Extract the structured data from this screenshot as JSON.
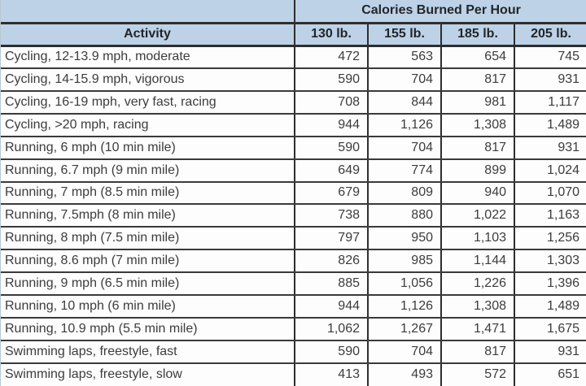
{
  "colors": {
    "header_bg": "#bdd2e6",
    "grid_dark": "#2e2e2e",
    "row_separator": "#3a3a3a",
    "body_text": "#3c3c3c",
    "header_text": "#21262b",
    "cell_bg": "#fdfdfd"
  },
  "table": {
    "title": "Calories Burned Per Hour",
    "corner": "",
    "columns": [
      "Activity",
      "130 lb.",
      "155 lb.",
      "185 lb.",
      "205 lb."
    ],
    "rows": [
      {
        "activity": "Cycling, 12-13.9 mph, moderate",
        "values": [
          "472",
          "563",
          "654",
          "745"
        ]
      },
      {
        "activity": "Cycling, 14-15.9 mph, vigorous",
        "values": [
          "590",
          "704",
          "817",
          "931"
        ]
      },
      {
        "activity": "Cycling, 16-19 mph, very fast, racing",
        "values": [
          "708",
          "844",
          "981",
          "1,117"
        ]
      },
      {
        "activity": "Cycling, >20 mph, racing",
        "values": [
          "944",
          "1,126",
          "1,308",
          "1,489"
        ]
      },
      {
        "activity": "Running, 6 mph (10 min mile)",
        "values": [
          "590",
          "704",
          "817",
          "931"
        ]
      },
      {
        "activity": "Running, 6.7 mph (9 min mile)",
        "values": [
          "649",
          "774",
          "899",
          "1,024"
        ]
      },
      {
        "activity": "Running, 7 mph (8.5 min mile)",
        "values": [
          "679",
          "809",
          "940",
          "1,070"
        ]
      },
      {
        "activity": "Running, 7.5mph (8 min mile)",
        "values": [
          "738",
          "880",
          "1,022",
          "1,163"
        ]
      },
      {
        "activity": "Running, 8 mph (7.5 min mile)",
        "values": [
          "797",
          "950",
          "1,103",
          "1,256"
        ]
      },
      {
        "activity": "Running, 8.6 mph (7 min mile)",
        "values": [
          "826",
          "985",
          "1,144",
          "1,303"
        ]
      },
      {
        "activity": "Running, 9 mph (6.5 min mile)",
        "values": [
          "885",
          "1,056",
          "1,226",
          "1,396"
        ]
      },
      {
        "activity": "Running, 10 mph (6 min mile)",
        "values": [
          "944",
          "1,126",
          "1,308",
          "1,489"
        ]
      },
      {
        "activity": "Running, 10.9 mph (5.5 min mile)",
        "values": [
          "1,062",
          "1,267",
          "1,471",
          "1,675"
        ]
      },
      {
        "activity": "Swimming laps, freestyle, fast",
        "values": [
          "590",
          "704",
          "817",
          "931"
        ]
      },
      {
        "activity": "Swimming laps, freestyle, slow",
        "values": [
          "413",
          "493",
          "572",
          "651"
        ]
      }
    ]
  },
  "chart_data": {
    "type": "table",
    "title": "Calories Burned Per Hour",
    "columns": [
      "Activity",
      "130 lb.",
      "155 lb.",
      "185 lb.",
      "205 lb."
    ],
    "rows": [
      [
        "Cycling, 12-13.9 mph, moderate",
        472,
        563,
        654,
        745
      ],
      [
        "Cycling, 14-15.9 mph, vigorous",
        590,
        704,
        817,
        931
      ],
      [
        "Cycling, 16-19 mph, very fast, racing",
        708,
        844,
        981,
        1117
      ],
      [
        "Cycling, >20 mph, racing",
        944,
        1126,
        1308,
        1489
      ],
      [
        "Running, 6 mph (10 min mile)",
        590,
        704,
        817,
        931
      ],
      [
        "Running, 6.7 mph (9 min mile)",
        649,
        774,
        899,
        1024
      ],
      [
        "Running, 7 mph (8.5 min mile)",
        679,
        809,
        940,
        1070
      ],
      [
        "Running, 7.5mph (8 min mile)",
        738,
        880,
        1022,
        1163
      ],
      [
        "Running, 8 mph (7.5 min mile)",
        797,
        950,
        1103,
        1256
      ],
      [
        "Running, 8.6 mph (7 min mile)",
        826,
        985,
        1144,
        1303
      ],
      [
        "Running, 9 mph (6.5 min mile)",
        885,
        1056,
        1226,
        1396
      ],
      [
        "Running, 10 mph (6 min mile)",
        944,
        1126,
        1308,
        1489
      ],
      [
        "Running, 10.9 mph (5.5 min mile)",
        1062,
        1267,
        1471,
        1675
      ],
      [
        "Swimming laps, freestyle, fast",
        590,
        704,
        817,
        931
      ],
      [
        "Swimming laps, freestyle, slow",
        413,
        493,
        572,
        651
      ]
    ]
  }
}
